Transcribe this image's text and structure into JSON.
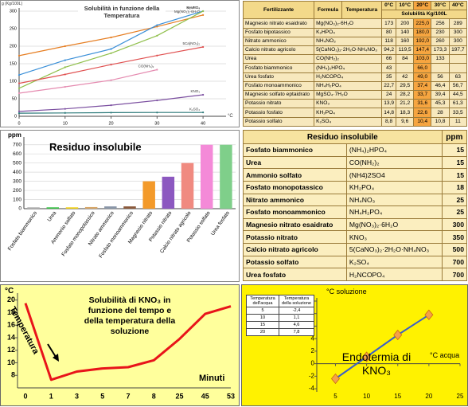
{
  "chart_data": [
    {
      "type": "line",
      "title": "Solubilità in funzione della Temperatura",
      "ylabel": "g (Kg/100L)",
      "xlabel": "°C",
      "x": [
        0,
        10,
        20,
        30,
        40
      ],
      "xlim": [
        0,
        45
      ],
      "ylim": [
        0,
        300
      ],
      "xticks": [
        0,
        10,
        20,
        30,
        40
      ],
      "yticks": [
        0,
        50,
        100,
        150,
        200,
        250,
        300
      ],
      "grid": true,
      "series": [
        {
          "name": "Mg(NO₃)₂·6H₂O",
          "color": "#e67e22",
          "values": [
            173,
            200,
            225,
            256,
            289
          ]
        },
        {
          "name": "NH₄NO₃",
          "color": "#3a8fd8",
          "values": [
            118,
            160,
            192,
            260,
            300
          ]
        },
        {
          "name": "K₂HPO₄",
          "color": "#8fbf4a",
          "values": [
            80,
            140,
            180,
            230,
            300
          ]
        },
        {
          "name": "5Ca(NO₃)₂",
          "color": "#e05050",
          "values": [
            94.2,
            119.5,
            147.4,
            173.3,
            197.7
          ]
        },
        {
          "name": "CO(NH₂)₂",
          "color": "#e58bb0",
          "values": [
            66,
            84,
            103,
            133,
            null
          ]
        },
        {
          "name": "KNO₃",
          "color": "#7b4fa0",
          "values": [
            13.9,
            21.2,
            31.6,
            45.3,
            61.3
          ]
        },
        {
          "name": "K₂SO₄",
          "color": "#2c7a7a",
          "values": [
            8.8,
            9.6,
            10.4,
            10.8,
            11
          ]
        }
      ]
    },
    {
      "type": "bar",
      "title": "Residuo insolubile",
      "ylabel": "ppm",
      "categories": [
        "Fosfato biammonico",
        "Urea",
        "Ammonio solfato",
        "Fosfato monopotassico",
        "Nitrato ammonico",
        "Fosfato monoammonico",
        "Magnesio nitrato",
        "Potassio nitrato",
        "Calcio nitrato agricolo",
        "Potassio solfato",
        "Urea fosfato"
      ],
      "values": [
        15,
        15,
        15,
        18,
        25,
        25,
        300,
        350,
        500,
        700,
        700
      ],
      "colors": [
        "#b0b0b0",
        "#3cc24a",
        "#f2d21a",
        "#d8a86a",
        "#8a97a8",
        "#8b5a3c",
        "#f39a2a",
        "#8c58c0",
        "#f08a80",
        "#f48ad8",
        "#7fcf8a"
      ],
      "ylim": [
        0,
        750
      ],
      "yticks": [
        0,
        100,
        200,
        300,
        400,
        500,
        600,
        700
      ],
      "grid": true
    },
    {
      "type": "line",
      "title": "Solubilità di KNO₃ in funzione del tempo e della temperatura della soluzione",
      "ylabel": "°C",
      "xlabel": "Minuti",
      "annotation": "Temperatura",
      "categories": [
        "0",
        "1",
        "3",
        "5",
        "7",
        "8",
        "25",
        "45",
        "53"
      ],
      "values": [
        19.5,
        7.3,
        8.6,
        9.1,
        9.3,
        10.4,
        13.8,
        17.8,
        19
      ],
      "color": "#e8141a",
      "ylim": [
        6,
        20.6
      ],
      "yticks": [
        8,
        10,
        12,
        14,
        16,
        18,
        20
      ],
      "grid": false
    },
    {
      "type": "scatter",
      "ylabel": "°C soluzione",
      "xlabel": "°C acqua",
      "annotation": "Endotermia di KNO₃",
      "x": [
        5,
        10,
        15,
        20
      ],
      "values": [
        -2.4,
        1.1,
        4.6,
        7.8
      ],
      "color": "#f5a04a",
      "line_color": "#3a5fc8",
      "xlim": [
        2,
        25
      ],
      "ylim": [
        -4.5,
        10
      ],
      "xticks": [
        5,
        10,
        15,
        20,
        25
      ],
      "yticks": [
        -4,
        -2,
        0,
        2,
        4,
        6,
        8,
        10
      ],
      "grid": false
    }
  ],
  "solubility_table": {
    "header": [
      "Fertilizzante",
      "Formula",
      "Temperatura",
      "0°C",
      "10°C",
      "20°C",
      "30°C",
      "40°C"
    ],
    "unit": "Solubilità Kg/100L",
    "rows": [
      [
        "Magnesio nitrato esaidrato",
        "Mg(NO₃)₂·6H₂O",
        "173",
        "200",
        "225,0",
        "256",
        "289"
      ],
      [
        "Fosfato bipotassico",
        "K₂HPO₄",
        "80",
        "140",
        "180,0",
        "230",
        "300"
      ],
      [
        "Nitrato ammonico",
        "NH₄NO₃",
        "118",
        "160",
        "192,0",
        "260",
        "300"
      ],
      [
        "Calcio nitrato agricolo",
        "5(CaNO₃)₂·2H₂O·NH₄NO₃",
        "94,2",
        "119,5",
        "147,4",
        "173,3",
        "197,7"
      ],
      [
        "Urea",
        "CO(NH₂)₂",
        "66",
        "84",
        "103,0",
        "133",
        null
      ],
      [
        "Fosfato biammonico",
        "(NH₄)₂HPO₄",
        "43",
        null,
        "66,0",
        null,
        null
      ],
      [
        "Urea fosfato",
        "H₂NCOPO₄",
        "35",
        "42",
        "49,0",
        "56",
        "63"
      ],
      [
        "Fosfato monoammonico",
        "NH₄H₂PO₄",
        "22,7",
        "29,5",
        "37,4",
        "46,4",
        "56,7"
      ],
      [
        "Magnesio solfato eptaidrato",
        "MgSO₄·7H₂O",
        "24",
        "28,2",
        "33,7",
        "39,4",
        "44,5"
      ],
      [
        "Potassio nitrato",
        "KNO₃",
        "13,9",
        "21,2",
        "31,6",
        "45,3",
        "61,3"
      ],
      [
        "Potassio fosfato",
        "KH₂PO₄",
        "14,8",
        "18,3",
        "22,6",
        "28",
        "33,5"
      ],
      [
        "Potassio solfato",
        "K₂SO₄",
        "8,8",
        "9,6",
        "10,4",
        "10,8",
        "11"
      ]
    ]
  },
  "residue_table": {
    "header": [
      "Residuo insolubile",
      "ppm"
    ],
    "rows": [
      [
        "Fosfato biammonico",
        "(NH₄)₂HPO₄",
        15
      ],
      [
        "Urea",
        "CO(NH₂)₂",
        15
      ],
      [
        "Ammonio solfato",
        "(NH4)2SO4",
        15
      ],
      [
        "Fosfato monopotassico",
        "KH₂PO₄",
        18
      ],
      [
        "Nitrato ammonico",
        "NH₄NO₃",
        25
      ],
      [
        "Fosfato monoammonico",
        "NH₄H₂PO₄",
        25
      ],
      [
        "Magnesio nitrato esaidrato",
        "Mg(NO₃)₂·6H₂O",
        300
      ],
      [
        "Potassio nitrato",
        "KNO₃",
        350
      ],
      [
        "Calcio nitrato agricolo",
        "5(CaNO₃)₂·2H₂O·NH₄NO₃",
        500
      ],
      [
        "Potassio solfato",
        "K₂SO₄",
        700
      ],
      [
        "Urea fosfato",
        "H₂NCOPO₄",
        700
      ]
    ]
  },
  "kno3_table": {
    "header": [
      "Temperatura dell'acqua",
      "Temperatura della soluzione"
    ],
    "rows": [
      [
        "5",
        "-2,4"
      ],
      [
        "10",
        "1,1"
      ],
      [
        "15",
        "4,6"
      ],
      [
        "20",
        "7,8"
      ]
    ]
  }
}
